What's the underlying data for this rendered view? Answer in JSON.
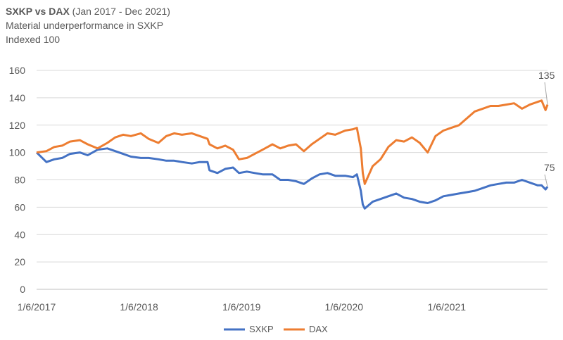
{
  "chart_data": {
    "type": "line",
    "title_bold": "SXKP vs DAX",
    "title_rest": " (Jan 2017 - Dec 2021)",
    "subtitle": "Material underperformance in SXKP",
    "subtitle2": "Indexed 100",
    "ylim": [
      0,
      160
    ],
    "yticks": [
      "0",
      "20",
      "40",
      "60",
      "80",
      "100",
      "120",
      "140",
      "160"
    ],
    "xlim": [
      "2017-01-06",
      "2021-12-31"
    ],
    "xticks": [
      "1/6/2017",
      "1/6/2018",
      "1/6/2019",
      "1/6/2020",
      "1/6/2021"
    ],
    "grid": "horizontal",
    "legend_position": "bottom",
    "colors": {
      "SXKP": "#4472C4",
      "DAX": "#ED7D31"
    },
    "series": [
      {
        "name": "SXKP",
        "end_label": "75",
        "points": [
          [
            "2017-01-06",
            100
          ],
          [
            "2017-02-10",
            93
          ],
          [
            "2017-03-10",
            95
          ],
          [
            "2017-04-07",
            96
          ],
          [
            "2017-05-05",
            99
          ],
          [
            "2017-06-09",
            100
          ],
          [
            "2017-07-07",
            98
          ],
          [
            "2017-08-11",
            102
          ],
          [
            "2017-09-15",
            103
          ],
          [
            "2017-10-13",
            101
          ],
          [
            "2017-11-10",
            99
          ],
          [
            "2017-12-08",
            97
          ],
          [
            "2018-01-12",
            96
          ],
          [
            "2018-02-09",
            96
          ],
          [
            "2018-03-16",
            95
          ],
          [
            "2018-04-13",
            94
          ],
          [
            "2018-05-11",
            94
          ],
          [
            "2018-06-08",
            93
          ],
          [
            "2018-07-13",
            92
          ],
          [
            "2018-08-10",
            93
          ],
          [
            "2018-09-07",
            93
          ],
          [
            "2018-09-14",
            87
          ],
          [
            "2018-10-12",
            85
          ],
          [
            "2018-11-09",
            88
          ],
          [
            "2018-12-07",
            89
          ],
          [
            "2018-12-28",
            85
          ],
          [
            "2019-01-25",
            86
          ],
          [
            "2019-02-22",
            85
          ],
          [
            "2019-03-22",
            84
          ],
          [
            "2019-04-26",
            84
          ],
          [
            "2019-05-24",
            80
          ],
          [
            "2019-06-21",
            80
          ],
          [
            "2019-07-19",
            79
          ],
          [
            "2019-08-16",
            77
          ],
          [
            "2019-09-13",
            81
          ],
          [
            "2019-10-11",
            84
          ],
          [
            "2019-11-08",
            85
          ],
          [
            "2019-12-06",
            83
          ],
          [
            "2020-01-10",
            83
          ],
          [
            "2020-02-07",
            82
          ],
          [
            "2020-02-21",
            84
          ],
          [
            "2020-03-06",
            72
          ],
          [
            "2020-03-13",
            62
          ],
          [
            "2020-03-20",
            59
          ],
          [
            "2020-04-17",
            64
          ],
          [
            "2020-05-15",
            66
          ],
          [
            "2020-06-12",
            68
          ],
          [
            "2020-07-10",
            70
          ],
          [
            "2020-08-07",
            67
          ],
          [
            "2020-09-04",
            66
          ],
          [
            "2020-10-02",
            64
          ],
          [
            "2020-10-30",
            63
          ],
          [
            "2020-11-27",
            65
          ],
          [
            "2020-12-25",
            68
          ],
          [
            "2021-01-22",
            69
          ],
          [
            "2021-02-19",
            70
          ],
          [
            "2021-03-19",
            71
          ],
          [
            "2021-04-16",
            72
          ],
          [
            "2021-05-14",
            74
          ],
          [
            "2021-06-11",
            76
          ],
          [
            "2021-07-09",
            77
          ],
          [
            "2021-08-06",
            78
          ],
          [
            "2021-09-03",
            78
          ],
          [
            "2021-10-01",
            80
          ],
          [
            "2021-10-29",
            78
          ],
          [
            "2021-11-26",
            76
          ],
          [
            "2021-12-10",
            76
          ],
          [
            "2021-12-24",
            73
          ],
          [
            "2021-12-31",
            75
          ]
        ]
      },
      {
        "name": "DAX",
        "end_label": "135",
        "points": [
          [
            "2017-01-06",
            100
          ],
          [
            "2017-02-10",
            101
          ],
          [
            "2017-03-10",
            104
          ],
          [
            "2017-04-07",
            105
          ],
          [
            "2017-05-05",
            108
          ],
          [
            "2017-06-09",
            109
          ],
          [
            "2017-07-07",
            106
          ],
          [
            "2017-08-11",
            103
          ],
          [
            "2017-09-15",
            107
          ],
          [
            "2017-10-13",
            111
          ],
          [
            "2017-11-10",
            113
          ],
          [
            "2017-12-08",
            112
          ],
          [
            "2018-01-12",
            114
          ],
          [
            "2018-02-09",
            110
          ],
          [
            "2018-03-16",
            107
          ],
          [
            "2018-04-13",
            112
          ],
          [
            "2018-05-11",
            114
          ],
          [
            "2018-06-08",
            113
          ],
          [
            "2018-07-13",
            114
          ],
          [
            "2018-08-10",
            112
          ],
          [
            "2018-09-07",
            110
          ],
          [
            "2018-09-14",
            106
          ],
          [
            "2018-10-12",
            103
          ],
          [
            "2018-11-09",
            105
          ],
          [
            "2018-12-07",
            102
          ],
          [
            "2018-12-28",
            95
          ],
          [
            "2019-01-25",
            96
          ],
          [
            "2019-02-22",
            99
          ],
          [
            "2019-03-22",
            102
          ],
          [
            "2019-04-26",
            106
          ],
          [
            "2019-05-24",
            103
          ],
          [
            "2019-06-21",
            105
          ],
          [
            "2019-07-19",
            106
          ],
          [
            "2019-08-16",
            101
          ],
          [
            "2019-09-13",
            106
          ],
          [
            "2019-10-11",
            110
          ],
          [
            "2019-11-08",
            114
          ],
          [
            "2019-12-06",
            113
          ],
          [
            "2020-01-10",
            116
          ],
          [
            "2020-02-07",
            117
          ],
          [
            "2020-02-21",
            118
          ],
          [
            "2020-03-06",
            103
          ],
          [
            "2020-03-13",
            85
          ],
          [
            "2020-03-20",
            77
          ],
          [
            "2020-04-17",
            90
          ],
          [
            "2020-05-15",
            95
          ],
          [
            "2020-06-12",
            104
          ],
          [
            "2020-07-10",
            109
          ],
          [
            "2020-08-07",
            108
          ],
          [
            "2020-09-04",
            111
          ],
          [
            "2020-10-02",
            107
          ],
          [
            "2020-10-30",
            100
          ],
          [
            "2020-11-27",
            112
          ],
          [
            "2020-12-25",
            116
          ],
          [
            "2021-01-22",
            118
          ],
          [
            "2021-02-19",
            120
          ],
          [
            "2021-03-19",
            125
          ],
          [
            "2021-04-16",
            130
          ],
          [
            "2021-05-14",
            132
          ],
          [
            "2021-06-11",
            134
          ],
          [
            "2021-07-09",
            134
          ],
          [
            "2021-08-06",
            135
          ],
          [
            "2021-09-03",
            136
          ],
          [
            "2021-10-01",
            132
          ],
          [
            "2021-10-29",
            135
          ],
          [
            "2021-11-26",
            137
          ],
          [
            "2021-12-10",
            138
          ],
          [
            "2021-12-24",
            131
          ],
          [
            "2021-12-31",
            135
          ]
        ]
      }
    ]
  }
}
